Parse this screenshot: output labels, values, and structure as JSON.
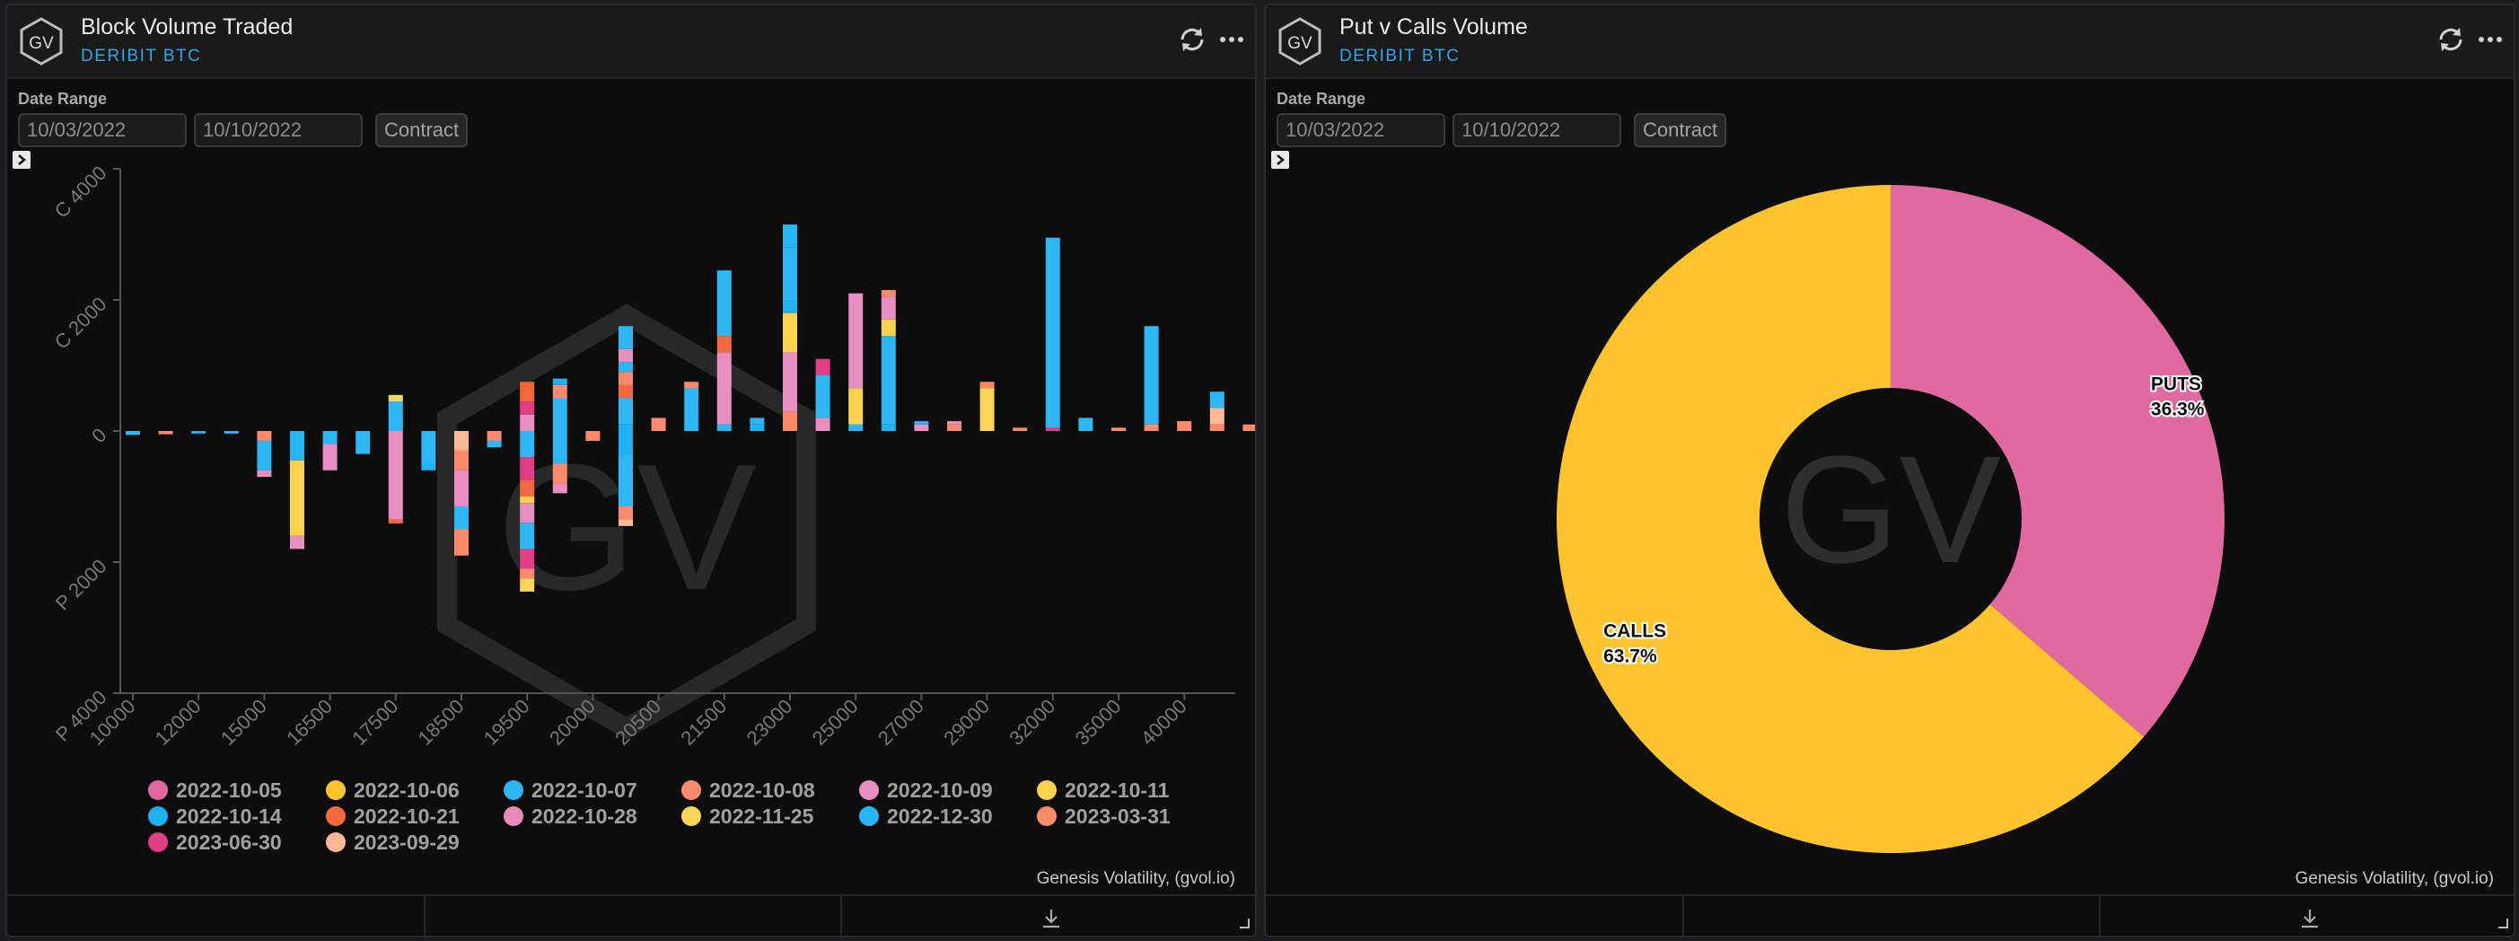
{
  "panels": [
    {
      "title": "Block Volume Traded",
      "subtitle": "DERIBIT BTC",
      "date_range_label": "Date Range",
      "date_from": "10/03/2022",
      "date_to": "10/10/2022",
      "contract_label": "Contract",
      "credit": "Genesis Volatility, (gvol.io)",
      "logo_text": "GV"
    },
    {
      "title": "Put v Calls Volume",
      "subtitle": "DERIBIT BTC",
      "date_range_label": "Date Range",
      "date_from": "10/03/2022",
      "date_to": "10/10/2022",
      "contract_label": "Contract",
      "credit": "Genesis Volatility, (gvol.io)",
      "logo_text": "GV"
    }
  ],
  "colors": {
    "accent": "#2fa6ea",
    "puts": "#e0699f",
    "calls": "#ffc42d"
  },
  "chart_data": [
    {
      "type": "bar",
      "stacked": true,
      "watermark": "GV",
      "y_ticks": [
        {
          "value": 4000,
          "label": "C 4000"
        },
        {
          "value": 2000,
          "label": "C 2000"
        },
        {
          "value": 0,
          "label": "0"
        },
        {
          "value": -2000,
          "label": "P 2000"
        },
        {
          "value": -4000,
          "label": "P 4000"
        }
      ],
      "ylim": [
        -4000,
        4000
      ],
      "x_tick_labels": [
        "10000",
        "12000",
        "15000",
        "16500",
        "17500",
        "18500",
        "19500",
        "20000",
        "20500",
        "21500",
        "23000",
        "25000",
        "27000",
        "29000",
        "32000",
        "35000",
        "40000"
      ],
      "legend": [
        {
          "label": "2022-10-05",
          "color": "#e0699f"
        },
        {
          "label": "2022-10-06",
          "color": "#ffc42d"
        },
        {
          "label": "2022-10-07",
          "color": "#2fb6f4"
        },
        {
          "label": "2022-10-08",
          "color": "#fd8a6c"
        },
        {
          "label": "2022-10-09",
          "color": "#e88ec1"
        },
        {
          "label": "2022-10-11",
          "color": "#fbd24e"
        },
        {
          "label": "2022-10-14",
          "color": "#1fb1f2"
        },
        {
          "label": "2022-10-21",
          "color": "#f4683e"
        },
        {
          "label": "2022-10-28",
          "color": "#ec8bb8"
        },
        {
          "label": "2022-11-25",
          "color": "#fbd55a"
        },
        {
          "label": "2022-12-30",
          "color": "#29b6f6"
        },
        {
          "label": "2023-03-31",
          "color": "#fb8a6a"
        },
        {
          "label": "2023-06-30",
          "color": "#e23e86"
        },
        {
          "label": "2023-09-29",
          "color": "#fdb894"
        }
      ],
      "bars": [
        {
          "slot": 0,
          "segments": [
            [
              2,
              -60
            ]
          ]
        },
        {
          "slot": 1,
          "segments": [
            [
              3,
              -50
            ]
          ]
        },
        {
          "slot": 2,
          "segments": [
            [
              6,
              -40
            ]
          ]
        },
        {
          "slot": 3,
          "segments": [
            [
              10,
              -40
            ]
          ]
        },
        {
          "slot": 4,
          "segments": [
            [
              3,
              -150
            ],
            [
              2,
              -450
            ],
            [
              4,
              -100
            ]
          ]
        },
        {
          "slot": 5,
          "segments": [
            [
              10,
              -450
            ],
            [
              5,
              -1150
            ],
            [
              4,
              -200
            ]
          ]
        },
        {
          "slot": 6,
          "segments": [
            [
              2,
              -200
            ],
            [
              4,
              -400
            ]
          ]
        },
        {
          "slot": 7,
          "segments": [
            [
              2,
              -350
            ]
          ]
        },
        {
          "slot": 8,
          "segments": [
            [
              2,
              450
            ],
            [
              9,
              100
            ],
            [
              4,
              -1350
            ],
            [
              7,
              -60
            ]
          ]
        },
        {
          "slot": 9,
          "segments": [
            [
              2,
              -500
            ],
            [
              6,
              -100
            ]
          ]
        },
        {
          "slot": 10,
          "segments": [
            [
              13,
              -300
            ],
            [
              3,
              -300
            ],
            [
              4,
              -550
            ],
            [
              2,
              -350
            ],
            [
              11,
              -400
            ]
          ]
        },
        {
          "slot": 11,
          "segments": [
            [
              3,
              -150
            ],
            [
              2,
              -100
            ]
          ]
        },
        {
          "slot": 12,
          "segments": [
            [
              4,
              250
            ],
            [
              12,
              200
            ],
            [
              7,
              300
            ],
            [
              2,
              -400
            ],
            [
              12,
              -350
            ],
            [
              7,
              -250
            ],
            [
              5,
              -100
            ],
            [
              4,
              -300
            ],
            [
              2,
              -400
            ],
            [
              12,
              -300
            ],
            [
              3,
              -150
            ],
            [
              9,
              -200
            ]
          ]
        },
        {
          "slot": 13,
          "segments": [
            [
              2,
              500
            ],
            [
              3,
              200
            ],
            [
              6,
              100
            ],
            [
              2,
              -500
            ],
            [
              11,
              -300
            ],
            [
              4,
              -150
            ]
          ]
        },
        {
          "slot": 14,
          "segments": [
            [
              11,
              -150
            ]
          ]
        },
        {
          "slot": 15,
          "segments": [
            [
              6,
              100
            ],
            [
              2,
              400
            ],
            [
              7,
              200
            ],
            [
              11,
              200
            ],
            [
              10,
              150
            ],
            [
              4,
              200
            ],
            [
              2,
              350
            ],
            [
              6,
              -350
            ],
            [
              2,
              -800
            ],
            [
              3,
              -200
            ],
            [
              13,
              -100
            ]
          ]
        },
        {
          "slot": 16,
          "segments": [
            [
              3,
              200
            ]
          ]
        },
        {
          "slot": 17,
          "segments": [
            [
              2,
              650
            ],
            [
              11,
              100
            ]
          ]
        },
        {
          "slot": 18,
          "segments": [
            [
              10,
              100
            ],
            [
              4,
              1100
            ],
            [
              7,
              250
            ],
            [
              2,
              1000
            ]
          ]
        },
        {
          "slot": 19,
          "segments": [
            [
              6,
              100
            ],
            [
              2,
              100
            ]
          ]
        },
        {
          "slot": 20,
          "segments": [
            [
              11,
              300
            ],
            [
              4,
              900
            ],
            [
              5,
              600
            ],
            [
              6,
              200
            ],
            [
              2,
              800
            ],
            [
              10,
              350
            ]
          ]
        },
        {
          "slot": 21,
          "segments": [
            [
              4,
              200
            ],
            [
              2,
              650
            ],
            [
              12,
              250
            ]
          ]
        },
        {
          "slot": 22,
          "segments": [
            [
              2,
              100
            ],
            [
              5,
              550
            ],
            [
              4,
              1450
            ]
          ]
        },
        {
          "slot": 23,
          "segments": [
            [
              6,
              100
            ],
            [
              2,
              1350
            ],
            [
              5,
              250
            ],
            [
              4,
              350
            ],
            [
              3,
              100
            ]
          ]
        },
        {
          "slot": 24,
          "segments": [
            [
              4,
              100
            ],
            [
              10,
              50
            ]
          ]
        },
        {
          "slot": 25,
          "segments": [
            [
              3,
              100
            ],
            [
              4,
              50
            ]
          ]
        },
        {
          "slot": 26,
          "segments": [
            [
              9,
              650
            ],
            [
              11,
              100
            ]
          ]
        },
        {
          "slot": 27,
          "segments": [
            [
              11,
              50
            ]
          ]
        },
        {
          "slot": 28,
          "segments": [
            [
              12,
              50
            ],
            [
              2,
              2900
            ]
          ]
        },
        {
          "slot": 29,
          "segments": [
            [
              2,
              200
            ]
          ]
        },
        {
          "slot": 30,
          "segments": [
            [
              11,
              50
            ]
          ]
        },
        {
          "slot": 31,
          "segments": [
            [
              3,
              100
            ],
            [
              2,
              1500
            ]
          ]
        },
        {
          "slot": 32,
          "segments": [
            [
              3,
              150
            ]
          ]
        },
        {
          "slot": 33,
          "segments": [
            [
              3,
              100
            ],
            [
              13,
              250
            ],
            [
              2,
              250
            ]
          ]
        },
        {
          "slot": 34,
          "segments": [
            [
              3,
              100
            ]
          ]
        }
      ]
    },
    {
      "type": "pie",
      "donut": true,
      "watermark": "GV",
      "slices": [
        {
          "label": "PUTS",
          "value": 36.3,
          "value_label": "36.3%",
          "color": "#e0699f"
        },
        {
          "label": "CALLS",
          "value": 63.7,
          "value_label": "63.7%",
          "color": "#ffc42d"
        }
      ]
    }
  ]
}
